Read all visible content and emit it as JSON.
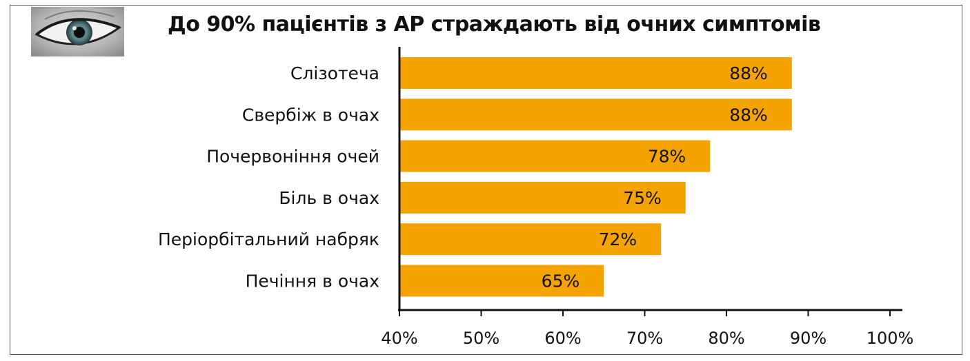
{
  "chart_data": {
    "type": "bar",
    "orientation": "horizontal",
    "title": "До 90% пацієнтів з АР страждають від очних симптомів",
    "categories": [
      "Слізотеча",
      "Свербіж в очах",
      "Почервоніння очей",
      "Біль в очах",
      "Періорбітальний набряк",
      "Печіння в очах"
    ],
    "values": [
      88,
      88,
      78,
      75,
      72,
      65
    ],
    "value_labels": [
      "88%",
      "88%",
      "78%",
      "75%",
      "72%",
      "65%"
    ],
    "xlim": [
      40,
      100
    ],
    "x_ticks": [
      "40%",
      "50%",
      "60%",
      "70%",
      "80%",
      "90%",
      "100%"
    ],
    "bar_color": "#F5A300",
    "grid": false,
    "legend": "none"
  },
  "image": {
    "icon": "eye-photo-icon"
  }
}
